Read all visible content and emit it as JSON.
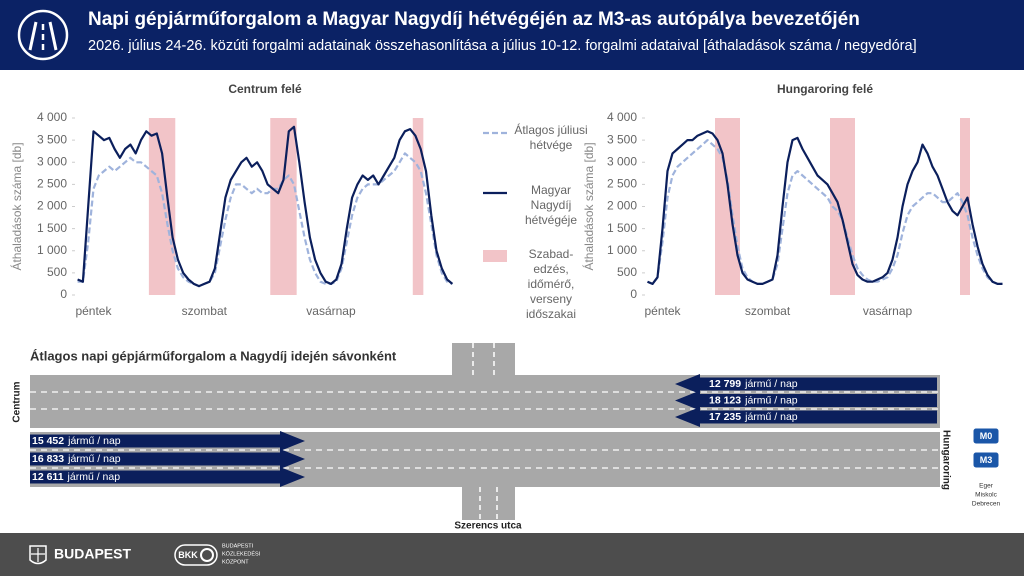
{
  "header": {
    "title": "Napi gépjárműforgalom a Magyar Nagydíj hétvégéjén az M3-as autópálya bevezetőjén",
    "subtitle": "2026. július 24-26. közúti forgalmi adatainak összehasonlítása a július 10-12. forgalmi adataival [áthaladások száma / negyedóra]"
  },
  "chart_data": [
    {
      "type": "line",
      "title": "Centrum felé",
      "y_label": "Áthaladások száma [db]",
      "categories": [
        null,
        null,
        null,
        "péntek",
        null,
        null,
        null,
        null,
        null,
        null,
        null,
        null,
        null,
        null,
        null,
        null,
        null,
        null,
        null,
        null,
        null,
        null,
        null,
        null,
        "szombat",
        null,
        null,
        null,
        null,
        null,
        null,
        null,
        null,
        null,
        null,
        null,
        null,
        null,
        null,
        null,
        null,
        null,
        null,
        null,
        null,
        null,
        null,
        null,
        "vasárnap",
        null,
        null,
        null,
        null,
        null,
        null,
        null,
        null,
        null,
        null,
        null,
        null,
        null,
        null,
        null,
        null,
        null,
        null,
        null,
        null,
        null,
        null,
        null
      ],
      "series": [
        {
          "name": "Átlagos júliusi hétvége",
          "color": "#9fb3dc",
          "dash": true,
          "values": [
            300,
            300,
            1200,
            2400,
            2700,
            2800,
            2900,
            2800,
            2900,
            3000,
            3100,
            3000,
            3000,
            2900,
            2800,
            2700,
            2300,
            1600,
            1000,
            600,
            400,
            300,
            250,
            200,
            250,
            300,
            500,
            1100,
            1700,
            2200,
            2500,
            2500,
            2400,
            2300,
            2400,
            2300,
            2300,
            2400,
            2400,
            2600,
            2700,
            2500,
            1900,
            1300,
            800,
            500,
            300,
            250,
            250,
            300,
            600,
            1200,
            1800,
            2200,
            2400,
            2500,
            2500,
            2500,
            2600,
            2700,
            2800,
            3000,
            3200,
            3100,
            3000,
            2800,
            2300,
            1600,
            900,
            500,
            300,
            250
          ]
        },
        {
          "name": "Magyar Nagydíj hétvégéje",
          "color": "#0b1f5c",
          "dash": false,
          "values": [
            350,
            300,
            2000,
            3700,
            3600,
            3500,
            3550,
            3300,
            3100,
            3300,
            3400,
            3200,
            3500,
            3700,
            3600,
            3650,
            3200,
            2200,
            1300,
            800,
            500,
            350,
            250,
            200,
            250,
            300,
            600,
            1400,
            2200,
            2600,
            2800,
            3000,
            3100,
            2900,
            3000,
            2800,
            2500,
            2400,
            2300,
            2600,
            3700,
            3800,
            3000,
            2100,
            1300,
            800,
            500,
            300,
            250,
            350,
            700,
            1500,
            2200,
            2500,
            2700,
            2600,
            2700,
            2500,
            2700,
            2900,
            3100,
            3500,
            3700,
            3750,
            3600,
            3300,
            2800,
            1800,
            1000,
            600,
            350,
            250
          ]
        }
      ],
      "highlight": {
        "name": "Szabad-edzés, időmérő, verseny időszakai",
        "color": "#f2c4c8",
        "ranges": [
          [
            14,
            19
          ],
          [
            37,
            42
          ],
          [
            64,
            66
          ]
        ]
      },
      "ylim": [
        0,
        4000
      ],
      "yticks": [
        0,
        500,
        {
          "value": 1000,
          "label": "1 000"
        },
        {
          "value": 1500,
          "label": "1 500"
        },
        {
          "value": 2000,
          "label": "2 000"
        },
        {
          "value": 2500,
          "label": "2 500"
        },
        {
          "value": 3000,
          "label": "3 000"
        },
        {
          "value": 3500,
          "label": "3 500"
        },
        {
          "value": 4000,
          "label": "4 000"
        }
      ],
      "grid": false,
      "legend": "right"
    },
    {
      "type": "line",
      "title": "Hungaroring felé",
      "y_label": "Áthaladások száma [db]",
      "categories": [
        null,
        null,
        null,
        "péntek",
        null,
        null,
        null,
        null,
        null,
        null,
        null,
        null,
        null,
        null,
        null,
        null,
        null,
        null,
        null,
        null,
        null,
        null,
        null,
        null,
        "szombat",
        null,
        null,
        null,
        null,
        null,
        null,
        null,
        null,
        null,
        null,
        null,
        null,
        null,
        null,
        null,
        null,
        null,
        null,
        null,
        null,
        null,
        null,
        null,
        "vasárnap",
        null,
        null,
        null,
        null,
        null,
        null,
        null,
        null,
        null,
        null,
        null,
        null,
        null,
        null,
        null,
        null,
        null,
        null,
        null,
        null,
        null,
        null,
        null
      ],
      "series": [
        {
          "name": "Átlagos júliusi hétvége",
          "color": "#9fb3dc",
          "dash": true,
          "values": [
            300,
            250,
            400,
            1200,
            2200,
            2700,
            2900,
            3000,
            3100,
            3200,
            3300,
            3400,
            3500,
            3400,
            3300,
            3100,
            2600,
            1800,
            1100,
            600,
            400,
            300,
            250,
            250,
            300,
            350,
            700,
            1500,
            2300,
            2700,
            2800,
            2700,
            2600,
            2500,
            2400,
            2300,
            2200,
            2000,
            1900,
            1700,
            1300,
            900,
            600,
            450,
            350,
            300,
            300,
            350,
            400,
            600,
            900,
            1400,
            1800,
            2000,
            2100,
            2200,
            2300,
            2300,
            2200,
            2100,
            2100,
            2200,
            2300,
            2100,
            1800,
            1300,
            900,
            600,
            400,
            300,
            250,
            250
          ]
        },
        {
          "name": "Magyar Nagydíj hétvégéje",
          "color": "#0b1f5c",
          "dash": false,
          "values": [
            300,
            250,
            400,
            1500,
            2800,
            3200,
            3300,
            3400,
            3500,
            3500,
            3600,
            3650,
            3700,
            3650,
            3500,
            3200,
            2500,
            1600,
            900,
            500,
            350,
            300,
            250,
            250,
            300,
            350,
            900,
            2000,
            3000,
            3500,
            3550,
            3300,
            3100,
            2900,
            2700,
            2600,
            2500,
            2300,
            2100,
            1700,
            1200,
            700,
            450,
            350,
            300,
            300,
            350,
            400,
            500,
            800,
            1300,
            2000,
            2500,
            2800,
            3000,
            3400,
            3200,
            2900,
            2700,
            2400,
            2100,
            1900,
            1800,
            2000,
            2200,
            1600,
            1100,
            700,
            450,
            300,
            250,
            250
          ]
        }
      ],
      "highlight": {
        "name": "Szabad-edzés, időmérő, verseny időszakai",
        "color": "#f2c4c8",
        "ranges": [
          [
            14,
            19
          ],
          [
            37,
            42
          ],
          [
            63,
            65
          ]
        ]
      },
      "ylim": [
        0,
        4000
      ],
      "yticks": [
        0,
        500,
        {
          "value": 1000,
          "label": "1 000"
        },
        {
          "value": 1500,
          "label": "1 500"
        },
        {
          "value": 2000,
          "label": "2 000"
        },
        {
          "value": 2500,
          "label": "2 500"
        },
        {
          "value": 3000,
          "label": "3 000"
        },
        {
          "value": 3500,
          "label": "3 500"
        },
        {
          "value": 4000,
          "label": "4 000"
        }
      ],
      "grid": false,
      "legend": "none"
    }
  ],
  "lanes": {
    "title": "Átlagos napi gépjárműforgalom a Nagydíj idején sávonként",
    "unit": "jármű / nap",
    "toward_centrum": [
      "12 799",
      "18 123",
      "17 235"
    ],
    "toward_hungaroring": [
      "15 452",
      "16 833",
      "12 611"
    ],
    "left_end": "Centrum",
    "right_end": "Hungaroring",
    "street": "Szerencs utca",
    "m0": "M0",
    "m3": "M3",
    "destinations": [
      "Eger",
      "Miskolc",
      "Debrecen"
    ]
  },
  "footer": {
    "city": "BUDAPEST",
    "bkk": "BKK",
    "bkk_name": [
      "BUDAPESTI",
      "KÖZLEKEDÉSI",
      "KÖZPONT"
    ]
  }
}
